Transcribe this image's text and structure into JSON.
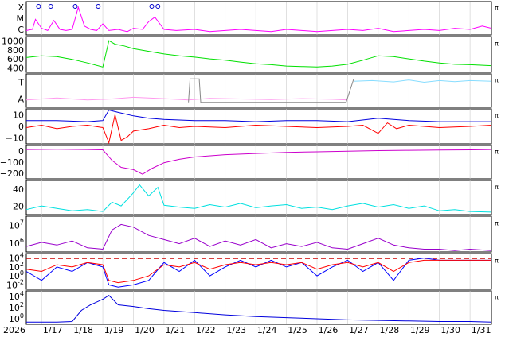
{
  "chart_data": {
    "type": "line",
    "x_axis": {
      "year_label": "2026",
      "ticks": [
        "1/17",
        "1/18",
        "1/19",
        "1/20",
        "1/21",
        "1/22",
        "1/23",
        "1/24",
        "1/25",
        "1/26",
        "1/27",
        "1/28",
        "1/29",
        "1/30",
        "1/31"
      ],
      "range_days": [
        16.5,
        31.7
      ]
    },
    "panels": [
      {
        "id": "xray",
        "ytick_labels": [
          "X",
          "M",
          "C"
        ],
        "series": [
          {
            "color": "#ff00ff",
            "x": [
              16.5,
              16.7,
              16.8,
              17.0,
              17.2,
              17.4,
              17.6,
              17.8,
              18.0,
              18.2,
              18.4,
              18.6,
              18.8,
              19.0,
              19.2,
              19.5,
              19.8,
              20.0,
              20.3,
              20.5,
              20.7,
              21.0,
              21.4,
              22.0,
              22.5,
              23.0,
              23.5,
              24.0,
              24.5,
              25.0,
              25.5,
              26.0,
              26.5,
              27.0,
              27.5,
              28.0,
              28.5,
              29.0,
              29.5,
              30.0,
              30.5,
              31.0,
              31.4,
              31.7
            ],
            "y": [
              0.4,
              0.5,
              1.4,
              0.6,
              0.4,
              1.3,
              0.5,
              0.4,
              0.5,
              2.5,
              0.8,
              0.5,
              0.4,
              1.0,
              0.4,
              0.5,
              0.3,
              0.6,
              0.5,
              1.2,
              1.6,
              0.5,
              0.4,
              0.5,
              0.3,
              0.4,
              0.5,
              0.4,
              0.3,
              0.5,
              0.4,
              0.3,
              0.4,
              0.5,
              0.4,
              0.6,
              0.3,
              0.4,
              0.5,
              0.4,
              0.6,
              0.5,
              0.8,
              0.6
            ]
          }
        ],
        "flare_marker_days": [
          16.9,
          17.3,
          18.1,
          18.85,
          20.6,
          20.8
        ]
      },
      {
        "id": "solar-wind-speed",
        "ytick_labels": [
          "1000",
          "800",
          "600",
          "400"
        ],
        "ylim": [
          350,
          1150
        ],
        "series": [
          {
            "color": "#00e000",
            "x": [
              16.5,
              17.0,
              17.5,
              18.0,
              18.5,
              19.0,
              19.2,
              19.4,
              19.7,
              20.0,
              20.5,
              21.0,
              21.5,
              22.0,
              22.5,
              23.0,
              23.5,
              24.0,
              24.5,
              25.0,
              25.5,
              26.0,
              26.5,
              27.0,
              27.5,
              28.0,
              28.5,
              29.0,
              29.5,
              30.0,
              30.5,
              31.0,
              31.7
            ],
            "y": [
              680,
              720,
              700,
              640,
              560,
              470,
              1060,
              980,
              940,
              880,
              820,
              760,
              720,
              690,
              650,
              620,
              580,
              540,
              520,
              490,
              480,
              470,
              490,
              530,
              620,
              720,
              700,
              650,
              600,
              560,
              530,
              520,
              500
            ]
          }
        ]
      },
      {
        "id": "sector",
        "ytick_labels": [
          "T",
          "A"
        ],
        "ylim": [
          0,
          1
        ],
        "series": [
          {
            "color": "#ff99ee",
            "x": [
              16.5,
              17.5,
              18.5,
              19.3,
              20.0,
              21.0,
              21.8,
              22.5,
              23.5,
              24.5,
              25.5,
              26.5,
              27.0
            ],
            "y": [
              0.22,
              0.28,
              0.22,
              0.25,
              0.3,
              0.26,
              0.22,
              0.27,
              0.25,
              0.23,
              0.26,
              0.24,
              0.22
            ]
          },
          {
            "color": "#88ddff",
            "x": [
              27.2,
              27.8,
              28.5,
              29.0,
              29.5,
              30.0,
              30.5,
              31.0,
              31.7
            ],
            "y": [
              0.78,
              0.8,
              0.76,
              0.82,
              0.75,
              0.8,
              0.77,
              0.8,
              0.78
            ]
          },
          {
            "color": "#888888",
            "x": [
              21.8,
              21.85,
              22.0,
              22.15,
              22.2,
              26.95,
              27.2
            ],
            "y": [
              0.15,
              0.85,
              0.85,
              0.85,
              0.15,
              0.15,
              0.85
            ]
          }
        ]
      },
      {
        "id": "imf-bz-bt",
        "ytick_labels": [
          "10",
          "0",
          "−10"
        ],
        "ylim": [
          -15,
          15
        ],
        "series": [
          {
            "color": "#0000dd",
            "x": [
              16.5,
              17.5,
              18.5,
              19.0,
              19.2,
              19.5,
              20.0,
              20.5,
              21.0,
              22.0,
              23.0,
              24.0,
              25.0,
              26.0,
              27.0,
              28.0,
              28.5,
              29.0,
              30.0,
              31.0,
              31.7
            ],
            "y": [
              5,
              5,
              4,
              5,
              14,
              12,
              9,
              7,
              6,
              5,
              5,
              4,
              5,
              5,
              4,
              7,
              6,
              5,
              4,
              4,
              4
            ]
          },
          {
            "color": "#ff0000",
            "x": [
              16.5,
              17.0,
              17.5,
              18.0,
              18.5,
              19.0,
              19.2,
              19.4,
              19.6,
              19.8,
              20.0,
              20.5,
              21.0,
              21.5,
              22.0,
              23.0,
              24.0,
              25.0,
              26.0,
              27.0,
              27.5,
              28.0,
              28.3,
              28.6,
              29.0,
              29.5,
              30.0,
              31.0,
              31.7
            ],
            "y": [
              -1,
              1,
              -2,
              0,
              1,
              -1,
              -14,
              10,
              -12,
              -9,
              -4,
              -2,
              1,
              -1,
              0,
              -1,
              1,
              0,
              -1,
              0,
              1,
              -6,
              3,
              -2,
              1,
              0,
              -1,
              0,
              1
            ]
          }
        ]
      },
      {
        "id": "dst",
        "ytick_labels": [
          "0",
          "−100",
          "−200"
        ],
        "ylim": [
          -260,
          30
        ],
        "series": [
          {
            "color": "#cc00cc",
            "x": [
              16.5,
              17.5,
              18.5,
              19.0,
              19.3,
              19.6,
              20.0,
              20.3,
              20.6,
              21.0,
              21.5,
              22.0,
              23.0,
              24.0,
              25.0,
              26.0,
              27.0,
              28.0,
              29.0,
              30.0,
              31.0,
              31.7
            ],
            "y": [
              -5,
              -3,
              -5,
              -8,
              -100,
              -160,
              -180,
              -220,
              -170,
              -120,
              -90,
              -70,
              -50,
              -40,
              -30,
              -25,
              -20,
              -15,
              -12,
              -10,
              -8,
              -5
            ]
          }
        ]
      },
      {
        "id": "density",
        "ytick_labels": [
          "40",
          "20"
        ],
        "ylim": [
          0,
          55
        ],
        "series": [
          {
            "color": "#00e0e0",
            "x": [
              16.5,
              17.0,
              17.5,
              18.0,
              18.5,
              19.0,
              19.3,
              19.6,
              20.0,
              20.2,
              20.5,
              20.8,
              21.0,
              21.5,
              22.0,
              22.5,
              23.0,
              23.5,
              24.0,
              24.5,
              25.0,
              25.5,
              26.0,
              26.5,
              27.0,
              27.5,
              28.0,
              28.5,
              29.0,
              29.5,
              30.0,
              30.5,
              31.0,
              31.7
            ],
            "y": [
              8,
              14,
              10,
              6,
              8,
              5,
              20,
              14,
              35,
              48,
              30,
              44,
              15,
              12,
              10,
              16,
              12,
              18,
              11,
              14,
              16,
              10,
              12,
              8,
              14,
              18,
              12,
              16,
              10,
              14,
              6,
              8,
              5,
              4
            ]
          }
        ]
      },
      {
        "id": "temperature",
        "ytick_labels": [
          "10^7",
          "10^6"
        ],
        "ylim": [
          5.0,
          7.6
        ],
        "series": [
          {
            "color": "#9900cc",
            "x": [
              16.5,
              17.0,
              17.5,
              18.0,
              18.5,
              19.0,
              19.3,
              19.6,
              20.0,
              20.5,
              21.0,
              21.5,
              22.0,
              22.5,
              23.0,
              23.5,
              24.0,
              24.5,
              25.0,
              25.5,
              26.0,
              26.5,
              27.0,
              27.5,
              28.0,
              28.5,
              29.0,
              29.5,
              30.0,
              30.5,
              31.0,
              31.7
            ],
            "y": [
              5.4,
              5.7,
              5.5,
              5.8,
              5.3,
              5.2,
              6.6,
              7.0,
              6.8,
              6.2,
              5.9,
              5.6,
              6.0,
              5.4,
              5.8,
              5.5,
              5.9,
              5.3,
              5.6,
              5.4,
              5.7,
              5.3,
              5.2,
              5.6,
              6.0,
              5.5,
              5.3,
              5.2,
              5.2,
              5.1,
              5.2,
              5.1
            ]
          }
        ]
      },
      {
        "id": "electron-flux",
        "ytick_labels": [
          "10^4",
          "10^2",
          "10^0",
          "10^-2"
        ],
        "ylim": [
          -3,
          5
        ],
        "series": [
          {
            "color": "#0000ff",
            "x": [
              16.5,
              17.0,
              17.5,
              18.0,
              18.5,
              19.0,
              19.2,
              19.5,
              20.0,
              20.5,
              21.0,
              21.5,
              22.0,
              22.5,
              23.0,
              23.5,
              24.0,
              24.5,
              25.0,
              25.5,
              26.0,
              26.5,
              27.0,
              27.5,
              28.0,
              28.5,
              29.0,
              29.5,
              30.0,
              30.5,
              31.0,
              31.7
            ],
            "y": [
              1,
              -1,
              2,
              1,
              3,
              2,
              -2,
              -2.5,
              -2,
              -1,
              3,
              1,
              3.5,
              0,
              2,
              3.5,
              2,
              3.5,
              2,
              3,
              0,
              2,
              3.5,
              1,
              3,
              -1,
              3.5,
              4,
              3.5,
              3.5,
              3.5,
              3.5
            ]
          },
          {
            "color": "#ff0000",
            "x": [
              16.5,
              17.0,
              17.5,
              18.0,
              18.5,
              19.0,
              19.2,
              19.5,
              20.0,
              20.5,
              21.0,
              21.5,
              22.0,
              22.5,
              23.0,
              23.5,
              24.0,
              24.5,
              25.0,
              25.5,
              26.0,
              26.5,
              27.0,
              27.5,
              28.0,
              28.5,
              29.0,
              29.5,
              30.0,
              30.5,
              31.0,
              31.7
            ],
            "y": [
              1.5,
              1,
              2.5,
              2,
              3,
              2.5,
              -1,
              -1.5,
              -1,
              0,
              2.5,
              2,
              3,
              1.5,
              2.5,
              3,
              2.5,
              3,
              2.5,
              3,
              1.5,
              2.5,
              3,
              2,
              3,
              1,
              3,
              3.5,
              3.5,
              3.5,
              3.5,
              3.5
            ]
          }
        ],
        "threshold": 3.9
      },
      {
        "id": "proton-flux",
        "ytick_labels": [
          "10^4",
          "10^2",
          "10^0"
        ],
        "ylim": [
          -1,
          5
        ],
        "series": [
          {
            "color": "#0000dd",
            "x": [
              16.5,
              17.5,
              18.0,
              18.3,
              18.6,
              19.0,
              19.2,
              19.5,
              20.0,
              20.5,
              21.0,
              22.0,
              23.0,
              24.0,
              25.0,
              26.0,
              27.0,
              28.0,
              29.0,
              30.0,
              31.0,
              31.7
            ],
            "y": [
              -0.6,
              -0.6,
              -0.5,
              1.5,
              2.5,
              3.5,
              4.2,
              2.5,
              2.2,
              1.8,
              1.5,
              1.1,
              0.7,
              0.4,
              0.2,
              0,
              -0.2,
              -0.3,
              -0.4,
              -0.5,
              -0.5,
              -0.6
            ]
          }
        ]
      }
    ]
  }
}
